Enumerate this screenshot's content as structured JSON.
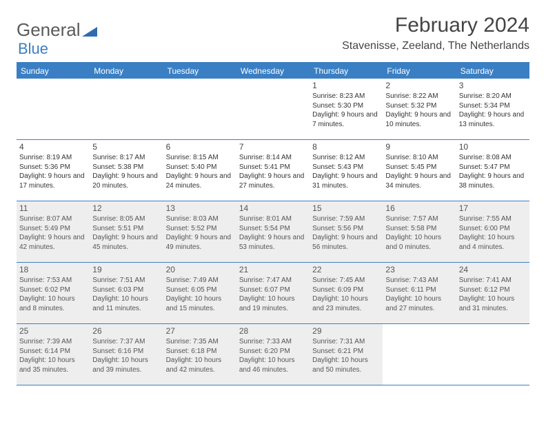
{
  "logo": {
    "text1": "General",
    "text2": "Blue"
  },
  "title": "February 2024",
  "location": "Stavenisse, Zeeland, The Netherlands",
  "colors": {
    "accent": "#3a7fc4",
    "shaded": "#eeeeee",
    "text": "#333333",
    "bg": "#ffffff"
  },
  "dayNames": [
    "Sunday",
    "Monday",
    "Tuesday",
    "Wednesday",
    "Thursday",
    "Friday",
    "Saturday"
  ],
  "weeks": [
    [
      {
        "n": "",
        "sr": "",
        "ss": "",
        "dl": ""
      },
      {
        "n": "",
        "sr": "",
        "ss": "",
        "dl": ""
      },
      {
        "n": "",
        "sr": "",
        "ss": "",
        "dl": ""
      },
      {
        "n": "",
        "sr": "",
        "ss": "",
        "dl": ""
      },
      {
        "n": "1",
        "sr": "Sunrise: 8:23 AM",
        "ss": "Sunset: 5:30 PM",
        "dl": "Daylight: 9 hours and 7 minutes."
      },
      {
        "n": "2",
        "sr": "Sunrise: 8:22 AM",
        "ss": "Sunset: 5:32 PM",
        "dl": "Daylight: 9 hours and 10 minutes."
      },
      {
        "n": "3",
        "sr": "Sunrise: 8:20 AM",
        "ss": "Sunset: 5:34 PM",
        "dl": "Daylight: 9 hours and 13 minutes."
      }
    ],
    [
      {
        "n": "4",
        "sr": "Sunrise: 8:19 AM",
        "ss": "Sunset: 5:36 PM",
        "dl": "Daylight: 9 hours and 17 minutes."
      },
      {
        "n": "5",
        "sr": "Sunrise: 8:17 AM",
        "ss": "Sunset: 5:38 PM",
        "dl": "Daylight: 9 hours and 20 minutes."
      },
      {
        "n": "6",
        "sr": "Sunrise: 8:15 AM",
        "ss": "Sunset: 5:40 PM",
        "dl": "Daylight: 9 hours and 24 minutes."
      },
      {
        "n": "7",
        "sr": "Sunrise: 8:14 AM",
        "ss": "Sunset: 5:41 PM",
        "dl": "Daylight: 9 hours and 27 minutes."
      },
      {
        "n": "8",
        "sr": "Sunrise: 8:12 AM",
        "ss": "Sunset: 5:43 PM",
        "dl": "Daylight: 9 hours and 31 minutes."
      },
      {
        "n": "9",
        "sr": "Sunrise: 8:10 AM",
        "ss": "Sunset: 5:45 PM",
        "dl": "Daylight: 9 hours and 34 minutes."
      },
      {
        "n": "10",
        "sr": "Sunrise: 8:08 AM",
        "ss": "Sunset: 5:47 PM",
        "dl": "Daylight: 9 hours and 38 minutes."
      }
    ],
    [
      {
        "n": "11",
        "sr": "Sunrise: 8:07 AM",
        "ss": "Sunset: 5:49 PM",
        "dl": "Daylight: 9 hours and 42 minutes."
      },
      {
        "n": "12",
        "sr": "Sunrise: 8:05 AM",
        "ss": "Sunset: 5:51 PM",
        "dl": "Daylight: 9 hours and 45 minutes."
      },
      {
        "n": "13",
        "sr": "Sunrise: 8:03 AM",
        "ss": "Sunset: 5:52 PM",
        "dl": "Daylight: 9 hours and 49 minutes."
      },
      {
        "n": "14",
        "sr": "Sunrise: 8:01 AM",
        "ss": "Sunset: 5:54 PM",
        "dl": "Daylight: 9 hours and 53 minutes."
      },
      {
        "n": "15",
        "sr": "Sunrise: 7:59 AM",
        "ss": "Sunset: 5:56 PM",
        "dl": "Daylight: 9 hours and 56 minutes."
      },
      {
        "n": "16",
        "sr": "Sunrise: 7:57 AM",
        "ss": "Sunset: 5:58 PM",
        "dl": "Daylight: 10 hours and 0 minutes."
      },
      {
        "n": "17",
        "sr": "Sunrise: 7:55 AM",
        "ss": "Sunset: 6:00 PM",
        "dl": "Daylight: 10 hours and 4 minutes."
      }
    ],
    [
      {
        "n": "18",
        "sr": "Sunrise: 7:53 AM",
        "ss": "Sunset: 6:02 PM",
        "dl": "Daylight: 10 hours and 8 minutes."
      },
      {
        "n": "19",
        "sr": "Sunrise: 7:51 AM",
        "ss": "Sunset: 6:03 PM",
        "dl": "Daylight: 10 hours and 11 minutes."
      },
      {
        "n": "20",
        "sr": "Sunrise: 7:49 AM",
        "ss": "Sunset: 6:05 PM",
        "dl": "Daylight: 10 hours and 15 minutes."
      },
      {
        "n": "21",
        "sr": "Sunrise: 7:47 AM",
        "ss": "Sunset: 6:07 PM",
        "dl": "Daylight: 10 hours and 19 minutes."
      },
      {
        "n": "22",
        "sr": "Sunrise: 7:45 AM",
        "ss": "Sunset: 6:09 PM",
        "dl": "Daylight: 10 hours and 23 minutes."
      },
      {
        "n": "23",
        "sr": "Sunrise: 7:43 AM",
        "ss": "Sunset: 6:11 PM",
        "dl": "Daylight: 10 hours and 27 minutes."
      },
      {
        "n": "24",
        "sr": "Sunrise: 7:41 AM",
        "ss": "Sunset: 6:12 PM",
        "dl": "Daylight: 10 hours and 31 minutes."
      }
    ],
    [
      {
        "n": "25",
        "sr": "Sunrise: 7:39 AM",
        "ss": "Sunset: 6:14 PM",
        "dl": "Daylight: 10 hours and 35 minutes."
      },
      {
        "n": "26",
        "sr": "Sunrise: 7:37 AM",
        "ss": "Sunset: 6:16 PM",
        "dl": "Daylight: 10 hours and 39 minutes."
      },
      {
        "n": "27",
        "sr": "Sunrise: 7:35 AM",
        "ss": "Sunset: 6:18 PM",
        "dl": "Daylight: 10 hours and 42 minutes."
      },
      {
        "n": "28",
        "sr": "Sunrise: 7:33 AM",
        "ss": "Sunset: 6:20 PM",
        "dl": "Daylight: 10 hours and 46 minutes."
      },
      {
        "n": "29",
        "sr": "Sunrise: 7:31 AM",
        "ss": "Sunset: 6:21 PM",
        "dl": "Daylight: 10 hours and 50 minutes."
      },
      {
        "n": "",
        "sr": "",
        "ss": "",
        "dl": ""
      },
      {
        "n": "",
        "sr": "",
        "ss": "",
        "dl": ""
      }
    ]
  ],
  "shadedWeeks": [
    2,
    3,
    4
  ]
}
